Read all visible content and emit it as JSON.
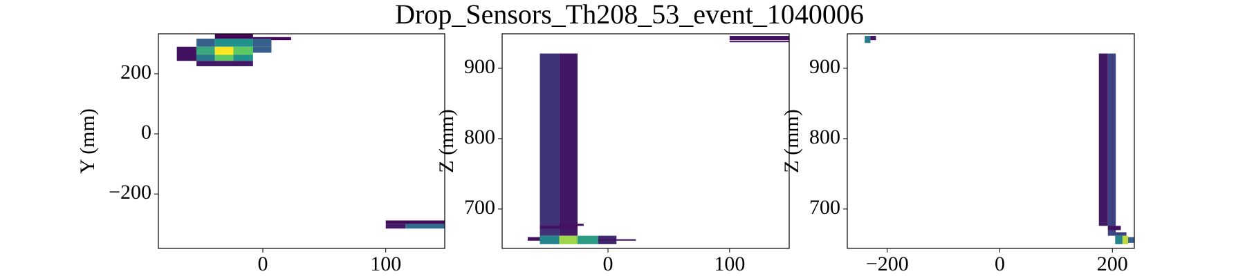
{
  "title": "Drop_Sensors_Th208_53_event_1040006",
  "chart_data": [
    {
      "type": "hist2d",
      "ylabel": "Y (mm)",
      "colormap": "viridis",
      "clim": [
        0,
        1
      ],
      "xlim": [
        -85,
        148
      ],
      "ylim": [
        -381,
        333
      ],
      "xticks": [
        0,
        100
      ],
      "yticks": [
        {
          "value": -200,
          "label": "−200"
        },
        0,
        200
      ],
      "cells": [
        {
          "x": [
            -39,
            -8
          ],
          "y": [
            317,
            333
          ],
          "value": 0.02
        },
        {
          "x": [
            -8,
            23
          ],
          "y": [
            312,
            322
          ],
          "value": 0.02
        },
        {
          "x": [
            -54,
            -39
          ],
          "y": [
            290,
            317
          ],
          "value": 0.3
        },
        {
          "x": [
            -39,
            -8
          ],
          "y": [
            290,
            317
          ],
          "value": 0.5
        },
        {
          "x": [
            -8,
            7
          ],
          "y": [
            290,
            317
          ],
          "value": 0.3
        },
        {
          "x": [
            -70,
            -54
          ],
          "y": [
            263,
            290
          ],
          "value": 0.05
        },
        {
          "x": [
            -54,
            -39
          ],
          "y": [
            263,
            290
          ],
          "value": 0.6
        },
        {
          "x": [
            -39,
            -24
          ],
          "y": [
            263,
            290
          ],
          "value": 1
        },
        {
          "x": [
            -24,
            -8
          ],
          "y": [
            263,
            290
          ],
          "value": 0.75
        },
        {
          "x": [
            -8,
            7
          ],
          "y": [
            270,
            290
          ],
          "value": 0.3
        },
        {
          "x": [
            -70,
            -54
          ],
          "y": [
            243,
            263
          ],
          "value": 0.05
        },
        {
          "x": [
            -54,
            -39
          ],
          "y": [
            243,
            263
          ],
          "value": 0.4
        },
        {
          "x": [
            -39,
            -24
          ],
          "y": [
            243,
            263
          ],
          "value": 0.75
        },
        {
          "x": [
            -24,
            -8
          ],
          "y": [
            243,
            263
          ],
          "value": 0.5
        },
        {
          "x": [
            -54,
            -8
          ],
          "y": [
            225,
            243
          ],
          "value": 0.08
        },
        {
          "x": [
            100,
            148
          ],
          "y": [
            -300,
            -288
          ],
          "value": 0.03
        },
        {
          "x": [
            100,
            116
          ],
          "y": [
            -315,
            -300
          ],
          "value": 0.08
        },
        {
          "x": [
            116,
            148
          ],
          "y": [
            -315,
            -300
          ],
          "value": 0.35
        }
      ]
    },
    {
      "type": "hist2d",
      "ylabel": "Z (mm)",
      "colormap": "viridis",
      "clim": [
        0,
        1
      ],
      "xlim": [
        -87,
        149
      ],
      "ylim": [
        644,
        949
      ],
      "xticks": [
        0,
        100
      ],
      "yticks": [
        700,
        800,
        900
      ],
      "cells": [
        {
          "x": [
            -56,
            -40
          ],
          "y": [
            662,
            921
          ],
          "value": 0.15
        },
        {
          "x": [
            -40,
            -25
          ],
          "y": [
            662,
            921
          ],
          "value": 0.07
        },
        {
          "x": [
            -56,
            -40
          ],
          "y": [
            650,
            662
          ],
          "value": 0.45
        },
        {
          "x": [
            -40,
            -25
          ],
          "y": [
            650,
            662
          ],
          "value": 0.85
        },
        {
          "x": [
            -25,
            -8
          ],
          "y": [
            650,
            662
          ],
          "value": 0.55
        },
        {
          "x": [
            -8,
            7
          ],
          "y": [
            650,
            662
          ],
          "value": 0.12
        },
        {
          "x": [
            -8,
            23
          ],
          "y": [
            655,
            657
          ],
          "value": 0.05
        },
        {
          "x": [
            -66,
            -56
          ],
          "y": [
            655,
            660
          ],
          "value": 0.05
        },
        {
          "x": [
            -56,
            -25
          ],
          "y": [
            672,
            676
          ],
          "value": 0.05
        },
        {
          "x": [
            -40,
            -20
          ],
          "y": [
            676,
            679
          ],
          "value": 0.05
        },
        {
          "x": [
            100,
            149
          ],
          "y": [
            940,
            946
          ],
          "value": 0.05
        },
        {
          "x": [
            100,
            149
          ],
          "y": [
            937,
            939
          ],
          "value": 0.05
        }
      ]
    },
    {
      "type": "hist2d",
      "ylabel": "Z (mm)",
      "colormap": "viridis",
      "clim": [
        0,
        1
      ],
      "xlim": [
        -271,
        239
      ],
      "ylim": [
        644,
        949
      ],
      "xticks": [
        {
          "value": -200,
          "label": "−200"
        },
        0,
        200
      ],
      "yticks": [
        700,
        800,
        900
      ],
      "cells": [
        {
          "x": [
            -240,
            -230
          ],
          "y": [
            936,
            946
          ],
          "value": 0.4
        },
        {
          "x": [
            -230,
            -220
          ],
          "y": [
            940,
            946
          ],
          "value": 0.05
        },
        {
          "x": [
            176,
            192
          ],
          "y": [
            676,
            921
          ],
          "value": 0.07
        },
        {
          "x": [
            192,
            206
          ],
          "y": [
            662,
            921
          ],
          "value": 0.2
        },
        {
          "x": [
            192,
            215
          ],
          "y": [
            670,
            676
          ],
          "value": 0.05
        },
        {
          "x": [
            205,
            225
          ],
          "y": [
            662,
            667
          ],
          "value": 0.2
        },
        {
          "x": [
            205,
            218
          ],
          "y": [
            650,
            662
          ],
          "value": 0.45
        },
        {
          "x": [
            218,
            228
          ],
          "y": [
            650,
            662
          ],
          "value": 0.9
        },
        {
          "x": [
            228,
            239
          ],
          "y": [
            652,
            660
          ],
          "value": 0.3
        }
      ]
    }
  ]
}
